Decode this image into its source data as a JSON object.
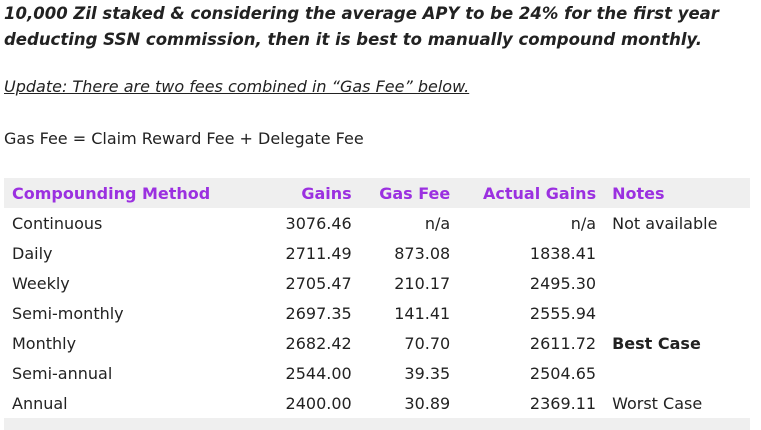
{
  "intro_text": "10,000 Zil staked & considering the average APY to be 24% for the first year deducting SSN commission, then it is best to manually compound monthly.",
  "update_text": "Update: There are two fees combined in “Gas Fee” below.",
  "formula_text": "Gas Fee = Claim Reward Fee + Delegate Fee",
  "table": {
    "header_color": "#9b30e0",
    "headers": {
      "method": "Compounding Method",
      "gains": "Gains",
      "gas_fee": "Gas Fee",
      "actual_gains": "Actual Gains",
      "notes": "Notes"
    },
    "rows": [
      {
        "method": "Continuous",
        "gains": "3076.46",
        "gas_fee": "n/a",
        "actual_gains": "n/a",
        "notes": "Not available"
      },
      {
        "method": "Daily",
        "gains": "2711.49",
        "gas_fee": "873.08",
        "actual_gains": "1838.41",
        "notes": ""
      },
      {
        "method": "Weekly",
        "gains": "2705.47",
        "gas_fee": "210.17",
        "actual_gains": "2495.30",
        "notes": ""
      },
      {
        "method": "Semi-monthly",
        "gains": "2697.35",
        "gas_fee": "141.41",
        "actual_gains": "2555.94",
        "notes": ""
      },
      {
        "method": "Monthly",
        "gains": "2682.42",
        "gas_fee": "70.70",
        "actual_gains": "2611.72",
        "notes": "Best Case"
      },
      {
        "method": "Semi-annual",
        "gains": "2544.00",
        "gas_fee": "39.35",
        "actual_gains": "2504.65",
        "notes": ""
      },
      {
        "method": "Annual",
        "gains": "2400.00",
        "gas_fee": "30.89",
        "actual_gains": "2369.11",
        "notes": "Worst Case"
      }
    ]
  }
}
